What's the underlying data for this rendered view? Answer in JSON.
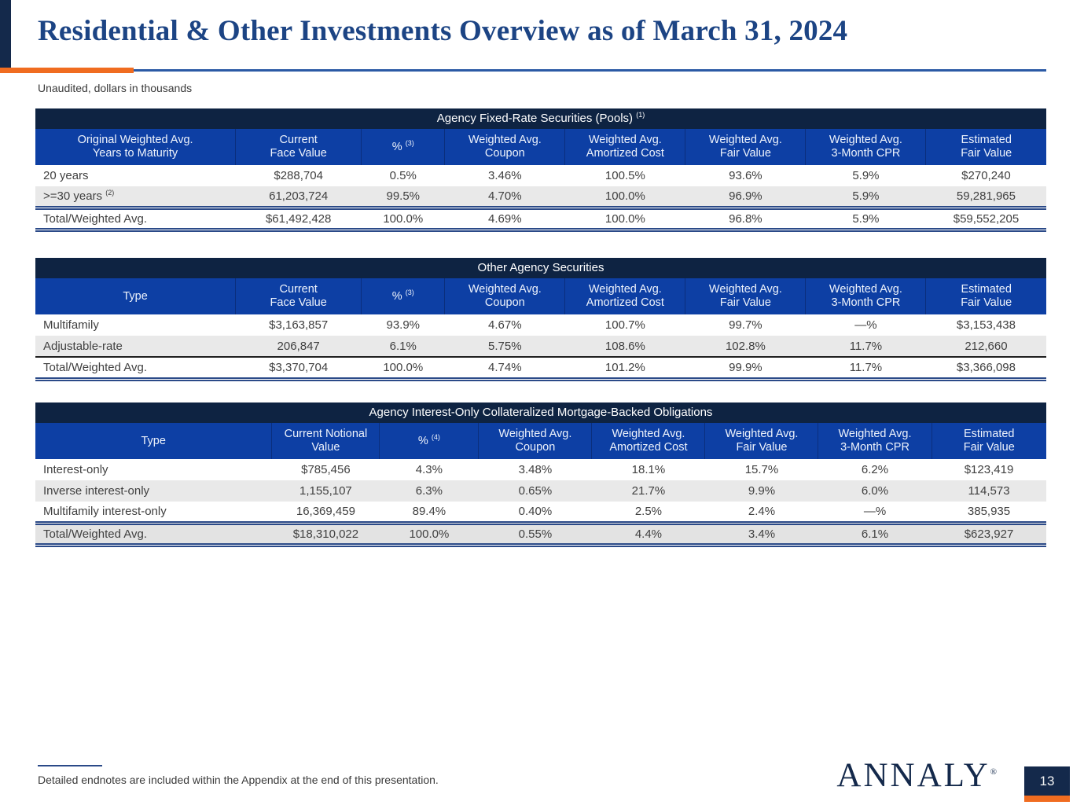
{
  "slide": {
    "title": "Residential & Other Investments Overview as of March 31, 2024",
    "subtitle": "Unaudited, dollars in thousands",
    "endnote": "Detailed endnotes are included within the Appendix at the end of this presentation.",
    "page_number": "13",
    "logo_text": "ANNALY",
    "logo_reg_mark": "®"
  },
  "colors": {
    "corner_navy": "#14294b",
    "table_title_navy": "#0e2342",
    "header_blue": "#0d3fa4",
    "slide_title_blue": "#1c4484",
    "rule_blue": "#2b4a88",
    "accent_orange": "#f06c20",
    "body_text": "#404040",
    "alt_row_gray": "#e9e9e9",
    "total_row_gray": "#e3e3e3"
  },
  "tables": [
    {
      "id": "agency-fixed-rate-securities",
      "title": "Agency Fixed-Rate Securities (Pools) ^(1)",
      "columns": [
        "Original Weighted Avg.\nYears to Maturity",
        "Current\nFace Value",
        "% ^(3)",
        "Weighted Avg.\nCoupon",
        "Weighted Avg.\nAmortized Cost",
        "Weighted Avg.\nFair Value",
        "Weighted Avg.\n3-Month CPR",
        "Estimated\nFair Value"
      ],
      "rows": [
        {
          "shade": false,
          "cells": [
            "20 years",
            "$288,704",
            "0.5%",
            "3.46%",
            "100.5%",
            "93.6%",
            "5.9%",
            "$270,240"
          ]
        },
        {
          "shade": true,
          "cells": [
            ">=30 years ^(2)",
            "61,203,724",
            "99.5%",
            "4.70%",
            "100.0%",
            "96.9%",
            "5.9%",
            "59,281,965"
          ]
        }
      ],
      "total_row": {
        "shade": false,
        "separator": "double",
        "cells": [
          "Total/Weighted Avg.",
          "$61,492,428",
          "100.0%",
          "4.69%",
          "100.0%",
          "96.8%",
          "5.9%",
          "$59,552,205"
        ]
      }
    },
    {
      "id": "other-agency-securities",
      "title": "Other Agency Securities",
      "columns": [
        "Type",
        "Current\nFace Value",
        "% ^(3)",
        "Weighted Avg.\nCoupon",
        "Weighted Avg.\nAmortized Cost",
        "Weighted Avg.\nFair Value",
        "Weighted Avg.\n3-Month CPR",
        "Estimated\nFair Value"
      ],
      "rows": [
        {
          "shade": false,
          "cells": [
            "Multifamily",
            "$3,163,857",
            "93.9%",
            "4.67%",
            "100.7%",
            "99.7%",
            "—%",
            "$3,153,438"
          ]
        },
        {
          "shade": true,
          "cells": [
            "Adjustable-rate",
            "206,847",
            "6.1%",
            "5.75%",
            "108.6%",
            "102.8%",
            "11.7%",
            "212,660"
          ]
        }
      ],
      "total_row": {
        "shade": false,
        "separator": "single",
        "cells": [
          "Total/Weighted Avg.",
          "$3,370,704",
          "100.0%",
          "4.74%",
          "101.2%",
          "99.9%",
          "11.7%",
          "$3,366,098"
        ]
      }
    },
    {
      "id": "agency-interest-only-cmbo",
      "title": "Agency Interest-Only Collateralized Mortgage-Backed Obligations",
      "columns": [
        "Type",
        "Current Notional\nValue",
        "% ^(4)",
        "Weighted Avg.\nCoupon",
        "Weighted Avg.\nAmortized Cost",
        "Weighted Avg.\nFair Value",
        "Weighted Avg.\n3-Month CPR",
        "Estimated\nFair Value"
      ],
      "rows": [
        {
          "shade": false,
          "cells": [
            "Interest-only",
            "$785,456",
            "4.3%",
            "3.48%",
            "18.1%",
            "15.7%",
            "6.2%",
            "$123,419"
          ]
        },
        {
          "shade": true,
          "cells": [
            "Inverse interest-only",
            "1,155,107",
            "6.3%",
            "0.65%",
            "21.7%",
            "9.9%",
            "6.0%",
            "114,573"
          ]
        },
        {
          "shade": false,
          "cells": [
            "Multifamily interest-only",
            "16,369,459",
            "89.4%",
            "0.40%",
            "2.5%",
            "2.4%",
            "—%",
            "385,935"
          ]
        }
      ],
      "total_row": {
        "shade": true,
        "separator": "double",
        "cells": [
          "Total/Weighted Avg.",
          "$18,310,022",
          "100.0%",
          "0.55%",
          "4.4%",
          "3.4%",
          "6.1%",
          "$623,927"
        ]
      }
    }
  ]
}
